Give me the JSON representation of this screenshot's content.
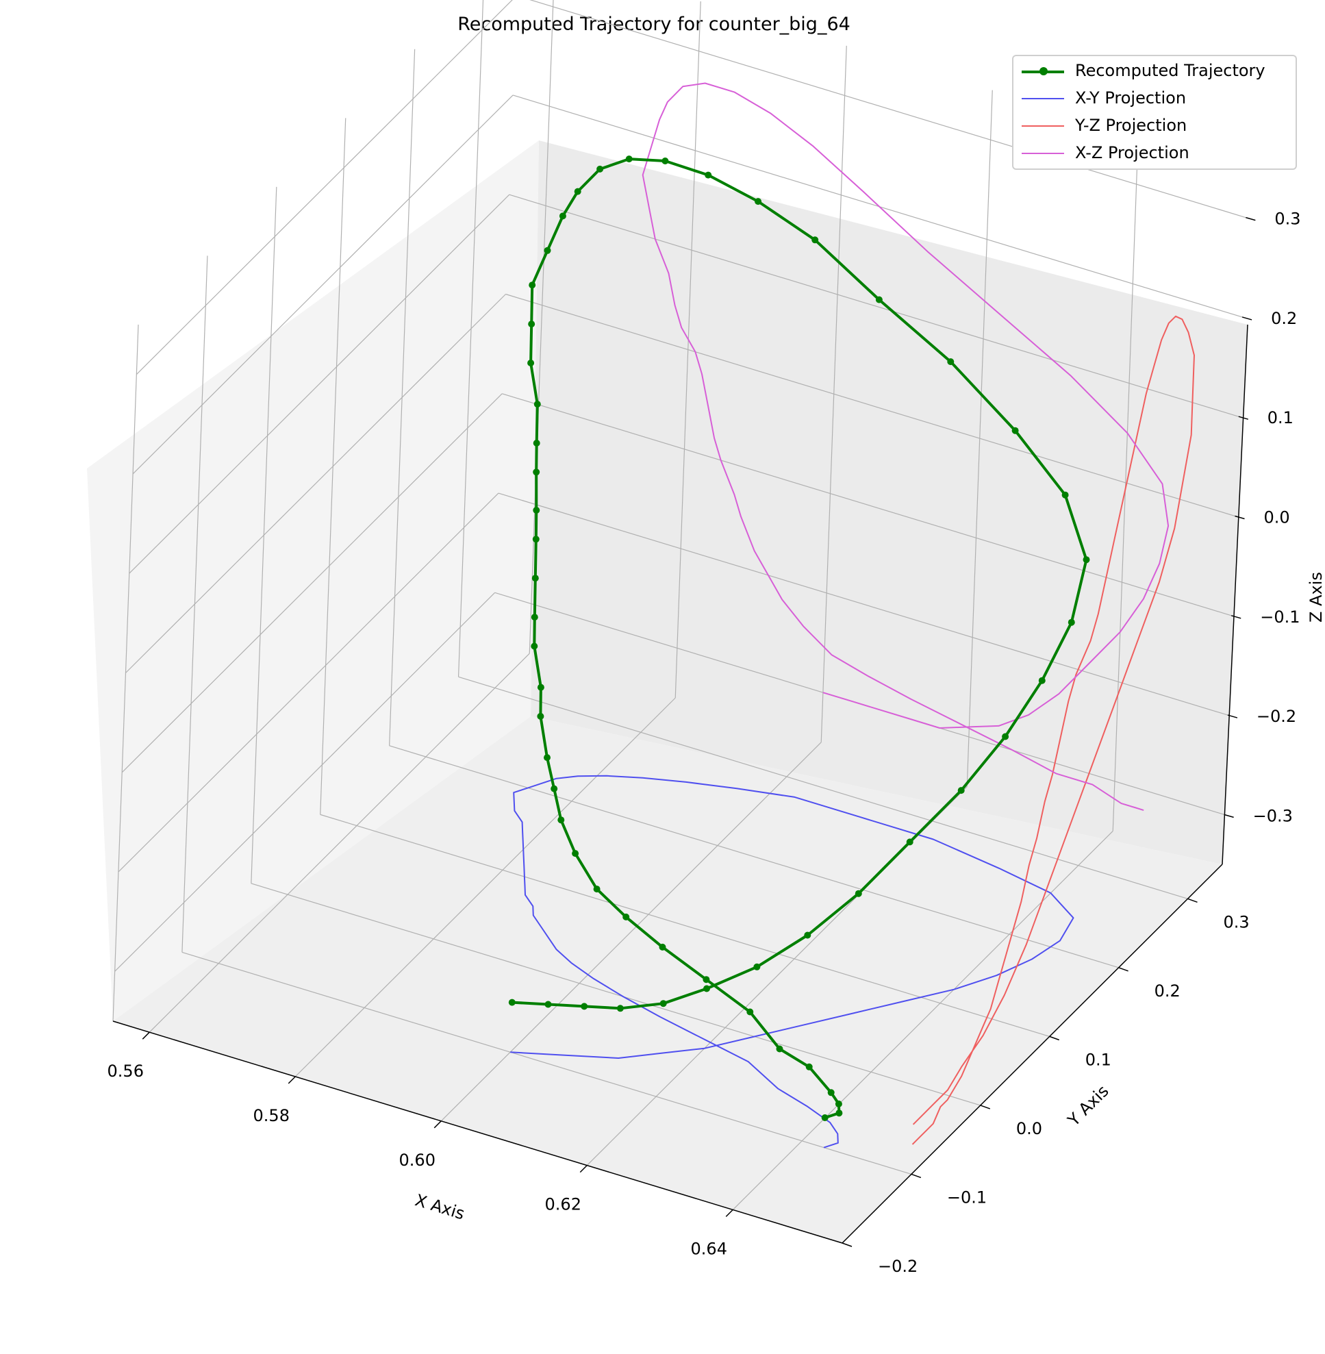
{
  "chart_data": {
    "type": "line",
    "title": "Recomputed Trajectory for counter_big_64",
    "xlabel": "X Axis",
    "ylabel": "Y Axis",
    "zlabel": "Z Axis",
    "xlim": [
      0.555,
      0.655
    ],
    "ylim": [
      -0.2,
      0.35
    ],
    "zlim": [
      -0.35,
      0.35
    ],
    "xticks": [
      "0.56",
      "0.58",
      "0.60",
      "0.62",
      "0.64"
    ],
    "yticks": [
      "−0.2",
      "−0.1",
      "0.0",
      "0.1",
      "0.2",
      "0.3"
    ],
    "zticks": [
      "−0.3",
      "−0.2",
      "−0.1",
      "0.0",
      "0.1",
      "0.2",
      "0.3"
    ],
    "grid": true,
    "legend_position": "top-right",
    "series": [
      {
        "name": "Recomputed Trajectory",
        "color": "#007f00",
        "marker": "o",
        "x": [
          0.6,
          0.604,
          0.608,
          0.612,
          0.616,
          0.62,
          0.624,
          0.628,
          0.632,
          0.636,
          0.64,
          0.643,
          0.645,
          0.646,
          0.645,
          0.64,
          0.632,
          0.622,
          0.612,
          0.603,
          0.596,
          0.59,
          0.585,
          0.581,
          0.578,
          0.576,
          0.575,
          0.574,
          0.573,
          0.574,
          0.575,
          0.577,
          0.578,
          0.579,
          0.581,
          0.582,
          0.583,
          0.584,
          0.585,
          0.587,
          0.588,
          0.59,
          0.592,
          0.594,
          0.597,
          0.601,
          0.606,
          0.612,
          0.619,
          0.626,
          0.632,
          0.637,
          0.641,
          0.643,
          0.644,
          0.643
        ],
        "y": [
          -0.1,
          -0.09,
          -0.08,
          -0.07,
          -0.05,
          -0.03,
          0.0,
          0.03,
          0.06,
          0.09,
          0.12,
          0.15,
          0.18,
          0.21,
          0.24,
          0.26,
          0.27,
          0.28,
          0.28,
          0.28,
          0.27,
          0.26,
          0.25,
          0.24,
          0.23,
          0.22,
          0.21,
          0.2,
          0.19,
          0.18,
          0.17,
          0.16,
          0.15,
          0.14,
          0.12,
          0.11,
          0.1,
          0.09,
          0.08,
          0.07,
          0.06,
          0.05,
          0.04,
          0.03,
          0.02,
          0.01,
          0.0,
          -0.01,
          -0.02,
          -0.03,
          -0.05,
          -0.06,
          -0.07,
          -0.08,
          -0.09,
          -0.1
        ],
        "z": [
          -0.3,
          -0.3,
          -0.3,
          -0.3,
          -0.3,
          -0.29,
          -0.28,
          -0.26,
          -0.23,
          -0.19,
          -0.15,
          -0.11,
          -0.07,
          -0.03,
          0.01,
          0.05,
          0.09,
          0.13,
          0.17,
          0.21,
          0.24,
          0.26,
          0.27,
          0.27,
          0.26,
          0.24,
          0.22,
          0.19,
          0.16,
          0.13,
          0.1,
          0.07,
          0.04,
          0.02,
          0.0,
          -0.02,
          -0.05,
          -0.08,
          -0.1,
          -0.13,
          -0.15,
          -0.18,
          -0.2,
          -0.22,
          -0.24,
          -0.26,
          -0.27,
          -0.28,
          -0.29,
          -0.3,
          -0.31,
          -0.31,
          -0.32,
          -0.32,
          -0.32,
          -0.32
        ]
      },
      {
        "name": "X-Y Projection",
        "color": "#4f4fef"
      },
      {
        "name": "Y-Z Projection",
        "color": "#ef5f5f"
      },
      {
        "name": "X-Z Projection",
        "color": "#d75fd7"
      }
    ]
  }
}
